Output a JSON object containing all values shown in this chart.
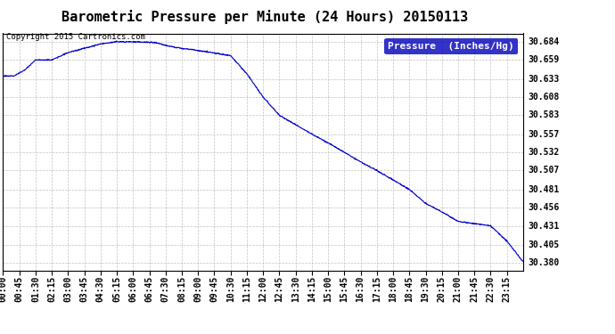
{
  "title": "Barometric Pressure per Minute (24 Hours) 20150113",
  "copyright_text": "Copyright 2015 Cartronics.com",
  "legend_label": "Pressure  (Inches/Hg)",
  "line_color": "#0000CC",
  "background_color": "#ffffff",
  "grid_color": "#bbbbbb",
  "yticks": [
    30.38,
    30.405,
    30.431,
    30.456,
    30.481,
    30.507,
    30.532,
    30.557,
    30.583,
    30.608,
    30.633,
    30.659,
    30.684
  ],
  "ylim": [
    30.3695,
    30.6955
  ],
  "x_tick_labels": [
    "00:00",
    "00:45",
    "01:30",
    "02:15",
    "03:00",
    "03:45",
    "04:30",
    "05:15",
    "06:00",
    "06:45",
    "07:30",
    "08:15",
    "09:00",
    "09:45",
    "10:30",
    "11:15",
    "12:00",
    "12:45",
    "13:30",
    "14:15",
    "15:00",
    "15:45",
    "16:30",
    "17:15",
    "18:00",
    "18:45",
    "19:30",
    "20:15",
    "21:00",
    "21:45",
    "22:30",
    "23:15"
  ],
  "title_fontsize": 11,
  "copyright_fontsize": 6.5,
  "tick_fontsize": 7,
  "legend_fontsize": 8,
  "keypoints_min": [
    0,
    30,
    60,
    90,
    135,
    180,
    270,
    315,
    360,
    420,
    450,
    480,
    540,
    630,
    675,
    720,
    765,
    810,
    855,
    900,
    945,
    990,
    1035,
    1080,
    1125,
    1170,
    1215,
    1260,
    1305,
    1350,
    1395,
    1439
  ],
  "keypoints_val": [
    30.637,
    30.637,
    30.645,
    30.659,
    30.659,
    30.669,
    30.681,
    30.684,
    30.684,
    30.683,
    30.679,
    30.676,
    30.672,
    30.665,
    30.64,
    30.608,
    30.583,
    30.57,
    30.557,
    30.545,
    30.532,
    30.519,
    30.507,
    30.494,
    30.481,
    30.462,
    30.45,
    30.437,
    30.434,
    30.431,
    30.41,
    30.382
  ]
}
